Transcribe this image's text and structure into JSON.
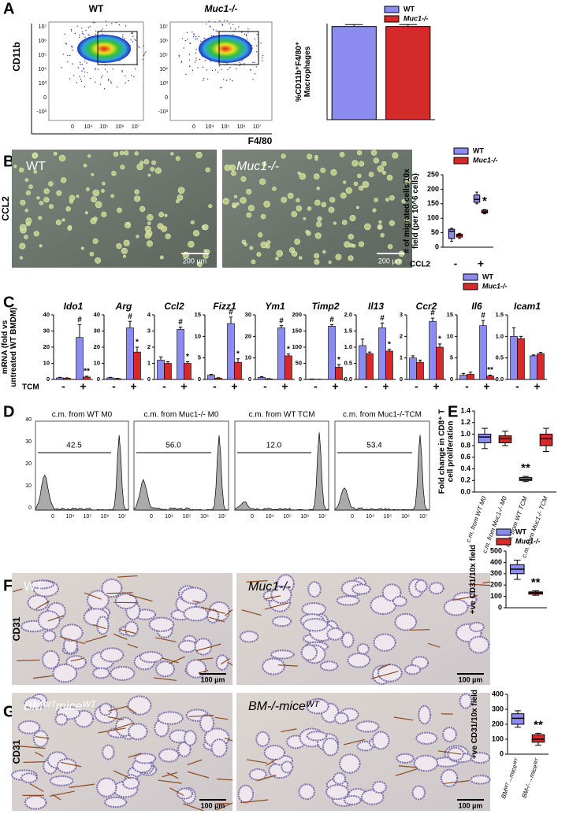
{
  "panel_labels": [
    "A",
    "B",
    "C",
    "D",
    "E",
    "F",
    "G"
  ],
  "images": {
    "a": {
      "labels": [
        "WT",
        "Muc1-/-"
      ],
      "y_label": "CD11b",
      "x_label": "F4/80",
      "y_ticks": [
        "10⁷",
        "10⁶",
        "10⁵",
        "10⁴",
        "10³",
        "0",
        "-10³"
      ],
      "x_ticks": [
        "0",
        "10⁴",
        "10⁵",
        "10⁶",
        "10⁷"
      ]
    },
    "b": {
      "labels": [
        "WT",
        "Muc1-/-"
      ],
      "scale_bars": [
        "200 µm",
        "200 µm"
      ],
      "row_label": "CCL2"
    },
    "d": {
      "titles": [
        "c.m. from WT M0",
        "c.m. from Muc1-/- M0",
        "c.m. from WT TCM",
        "c.m. from Muc1-/-TCM"
      ],
      "gates": [
        "42.5",
        "56.0",
        "12.0",
        "53.4"
      ],
      "y_ticks": [
        "0",
        "10",
        "20",
        "30",
        "40"
      ],
      "x_ticks": [
        "0",
        "10⁴",
        "10⁵",
        "10⁶",
        "10⁷"
      ]
    },
    "f": {
      "labels": [
        "WT",
        "Muc1-/-"
      ],
      "scale_bars": [
        "100 µm",
        "100 µm"
      ],
      "row_label": "CD31"
    },
    "g": {
      "labels": [
        "BMᵂᵀmiceᵂᵀ",
        "BM-/-miceᵂᵀ"
      ],
      "scale_bars": [
        "100 µm",
        "100 µm"
      ],
      "row_label": "CD31"
    }
  },
  "chart_data": [
    {
      "type": "bar",
      "ylabel": "%CD11b⁺F4/80⁺ Macrophages",
      "categories": [
        "WT",
        "Muc1-/-"
      ],
      "values": [
        97,
        97
      ],
      "errors": [
        2,
        2
      ],
      "colors": [
        "#8c8cf0",
        "#d42a2a"
      ],
      "ylim": [
        0,
        100
      ],
      "legend": "top-right"
    },
    {
      "type": "box",
      "ylabel": "# of migrated cells/10x field (per 10^6 cells)",
      "xlabel": "CCL2",
      "categories": [
        "-",
        "+"
      ],
      "ylim": [
        0,
        250
      ],
      "yticks": [
        0,
        50,
        100,
        150,
        200,
        250
      ],
      "legend": "top",
      "series": [
        {
          "name": "WT",
          "color": "#8c8cf0",
          "values": [
            [
              20,
              30,
              55,
              62,
              65
            ],
            [
              150,
              155,
              165,
              180,
              190
            ]
          ],
          "labels": [
            null,
            null
          ]
        },
        {
          "name": "Muc1-/-",
          "color": "#d42a2a",
          "values": [
            [
              30,
              35,
              40,
              45,
              48
            ],
            [
              115,
              118,
              122,
              128,
              130
            ]
          ],
          "labels": [
            null,
            "*"
          ]
        }
      ]
    },
    {
      "type": "bar-group",
      "title": "Ido1",
      "ylabel": "mRNA (fold vs untreated WT BMDM)",
      "xlabel": "TCM",
      "legend": "top-right",
      "categories": [
        "-",
        "+"
      ],
      "ylim": [
        0,
        40
      ],
      "yticks": [
        0,
        10,
        20,
        30,
        40
      ],
      "series": [
        {
          "name": "WT",
          "color": "#8c8cf0",
          "values": [
            1,
            26
          ],
          "errors": [
            0.3,
            8
          ],
          "labels": [
            null,
            "#"
          ]
        },
        {
          "name": "Muc1-/-",
          "color": "#d42a2a",
          "values": [
            0.8,
            1.5
          ],
          "errors": [
            0.2,
            0.5
          ],
          "labels": [
            null,
            "**"
          ]
        }
      ]
    },
    {
      "type": "bar-group",
      "title": "Arg",
      "categories": [
        "-",
        "+"
      ],
      "ylim": [
        0,
        40
      ],
      "yticks": [
        0,
        10,
        20,
        30,
        40
      ],
      "series": [
        {
          "name": "WT",
          "color": "#8c8cf0",
          "values": [
            1,
            32
          ],
          "errors": [
            0.3,
            4
          ],
          "labels": [
            null,
            "#"
          ]
        },
        {
          "name": "Muc1-/-",
          "color": "#d42a2a",
          "values": [
            0.5,
            17
          ],
          "errors": [
            0.2,
            3
          ],
          "labels": [
            null,
            "*"
          ]
        }
      ]
    },
    {
      "type": "bar-group",
      "title": "Ccl2",
      "categories": [
        "-",
        "+"
      ],
      "ylim": [
        0,
        4
      ],
      "yticks": [
        0,
        1,
        2,
        3,
        4
      ],
      "series": [
        {
          "name": "WT",
          "color": "#8c8cf0",
          "values": [
            1.2,
            3.1
          ],
          "errors": [
            0.2,
            0.15
          ],
          "labels": [
            null,
            "#"
          ]
        },
        {
          "name": "Muc1-/-",
          "color": "#d42a2a",
          "values": [
            1,
            1
          ],
          "errors": [
            0.1,
            0.1
          ],
          "labels": [
            null,
            "*"
          ]
        }
      ]
    },
    {
      "type": "bar-group",
      "title": "Fizz1",
      "categories": [
        "-",
        "+"
      ],
      "ylim": [
        0,
        15
      ],
      "yticks": [
        0,
        5,
        10,
        15
      ],
      "series": [
        {
          "name": "WT",
          "color": "#8c8cf0",
          "values": [
            1,
            13
          ],
          "errors": [
            0.2,
            1.5
          ],
          "labels": [
            null,
            "#"
          ]
        },
        {
          "name": "Muc1-/-",
          "color": "#d42a2a",
          "values": [
            0.3,
            4
          ],
          "errors": [
            0.1,
            0.8
          ],
          "labels": [
            null,
            "*"
          ]
        }
      ]
    },
    {
      "type": "bar-group",
      "title": "Ym1",
      "categories": [
        "-",
        "+"
      ],
      "ylim": [
        0,
        30
      ],
      "yticks": [
        0,
        10,
        20,
        30
      ],
      "series": [
        {
          "name": "WT",
          "color": "#8c8cf0",
          "values": [
            1,
            24
          ],
          "errors": [
            0.3,
            1
          ],
          "labels": [
            null,
            "#"
          ]
        },
        {
          "name": "Muc1-/-",
          "color": "#d42a2a",
          "values": [
            0.3,
            11
          ],
          "errors": [
            0.1,
            0.8
          ],
          "labels": [
            null,
            "*"
          ]
        }
      ]
    },
    {
      "type": "bar-group",
      "title": "Timp2",
      "categories": [
        "-",
        "+"
      ],
      "ylim": [
        0,
        200
      ],
      "yticks": [
        0,
        50,
        100,
        150,
        200
      ],
      "series": [
        {
          "name": "WT",
          "color": "#8c8cf0",
          "values": [
            1,
            165
          ],
          "errors": [
            0.5,
            5
          ],
          "labels": [
            null,
            "#"
          ]
        },
        {
          "name": "Muc1-/-",
          "color": "#d42a2a",
          "values": [
            0.5,
            38
          ],
          "errors": [
            0.2,
            8
          ],
          "labels": [
            null,
            "*"
          ]
        }
      ]
    },
    {
      "type": "bar-group",
      "title": "Il13",
      "categories": [
        "-",
        "+"
      ],
      "ylim": [
        0,
        2
      ],
      "yticks": [
        {
          "value": 0,
          "label": "0.0"
        },
        {
          "value": 0.5,
          "label": "0.5"
        },
        {
          "value": 1,
          "label": "1.0"
        },
        {
          "value": 1.5,
          "label": "1.5"
        },
        {
          "value": 2,
          "label": "2.0"
        }
      ],
      "series": [
        {
          "name": "WT",
          "color": "#8c8cf0",
          "values": [
            1.05,
            1.6
          ],
          "errors": [
            0.2,
            0.15
          ],
          "labels": [
            null,
            "#"
          ]
        },
        {
          "name": "Muc1-/-",
          "color": "#d42a2a",
          "values": [
            0.8,
            0.88
          ],
          "errors": [
            0.05,
            0.05
          ],
          "labels": [
            null,
            "*"
          ]
        }
      ]
    },
    {
      "type": "bar-group",
      "title": "Ccr2",
      "categories": [
        "-",
        "+"
      ],
      "ylim": [
        0,
        3
      ],
      "yticks": [
        0,
        1,
        2,
        3
      ],
      "series": [
        {
          "name": "WT",
          "color": "#8c8cf0",
          "values": [
            1,
            2.7
          ],
          "errors": [
            0.1,
            0.15
          ],
          "labels": [
            null,
            "#"
          ]
        },
        {
          "name": "Muc1-/-",
          "color": "#d42a2a",
          "values": [
            0.8,
            1.5
          ],
          "errors": [
            0.1,
            0.15
          ],
          "labels": [
            null,
            "*"
          ]
        }
      ]
    },
    {
      "type": "bar-group",
      "title": "Il6",
      "categories": [
        "-",
        "+"
      ],
      "ylim": [
        0,
        15
      ],
      "yticks": [
        0,
        5,
        10,
        15
      ],
      "series": [
        {
          "name": "WT",
          "color": "#8c8cf0",
          "values": [
            1,
            12.5
          ],
          "errors": [
            0.4,
            1.2
          ],
          "labels": [
            null,
            "#"
          ]
        },
        {
          "name": "Muc1-/-",
          "color": "#d42a2a",
          "values": [
            1.2,
            0.8
          ],
          "errors": [
            0.5,
            0.2
          ],
          "labels": [
            null,
            "**"
          ]
        }
      ]
    },
    {
      "type": "bar-group",
      "title": "Icam1",
      "categories": [
        "-",
        "+"
      ],
      "ylim": [
        0,
        1.5
      ],
      "yticks": [
        {
          "value": 0,
          "label": "0.0"
        },
        {
          "value": 0.5,
          "label": "0.5"
        },
        {
          "value": 1,
          "label": "1.0"
        },
        {
          "value": 1.5,
          "label": "1.5"
        }
      ],
      "series": [
        {
          "name": "WT",
          "color": "#8c8cf0",
          "values": [
            1,
            0.55
          ],
          "errors": [
            0.2,
            0.02
          ]
        },
        {
          "name": "Muc1-/-",
          "color": "#d42a2a",
          "values": [
            0.95,
            0.6
          ],
          "errors": [
            0.05,
            0.03
          ]
        }
      ]
    },
    {
      "type": "box",
      "ylabel": "Fold change in CD8⁺ T cell proliferation",
      "categories": [
        "c.m. from WT M0",
        "c.m. from Muc1-/- M0",
        "c.m. from WT TCM",
        "c.m. from Muc1-/- TCM"
      ],
      "values": [
        [
          0.75,
          0.85,
          0.95,
          1.0,
          1.1
        ],
        [
          0.8,
          0.85,
          0.92,
          0.97,
          1.05
        ],
        [
          0.18,
          0.2,
          0.22,
          0.25,
          0.27
        ],
        [
          0.7,
          0.8,
          0.92,
          1.0,
          1.1
        ]
      ],
      "colors": [
        "#8c8cf0",
        "#d42a2a",
        "#8c8cf0",
        "#d42a2a"
      ],
      "labels": [
        null,
        null,
        "**",
        null
      ],
      "ylim": [
        0,
        1.4
      ],
      "yticks": [
        {
          "value": 0,
          "label": "0.0"
        },
        {
          "value": 0.2,
          "label": "0.2"
        },
        {
          "value": 0.4,
          "label": "0.4"
        },
        {
          "value": 0.6,
          "label": "0.6"
        },
        {
          "value": 0.8,
          "label": "0.8"
        },
        {
          "value": 1,
          "label": "1.0"
        },
        {
          "value": 1.2,
          "label": "1.2"
        },
        {
          "value": 1.4,
          "label": "1.4"
        }
      ]
    },
    {
      "type": "box",
      "ylabel": "+ve CD31/10x field",
      "ylim": [
        0,
        500
      ],
      "yticks": [
        0,
        100,
        200,
        300,
        400,
        500
      ],
      "legend": "top",
      "series": [
        {
          "name": "WT",
          "color": "#8c8cf0",
          "values": [
            [
              250,
              300,
              340,
              380,
              420
            ]
          ],
          "labels": [
            null
          ]
        },
        {
          "name": "Muc1-/-",
          "color": "#d42a2a",
          "values": [
            [
              110,
              120,
              130,
              140,
              150
            ]
          ],
          "labels": [
            "**"
          ]
        }
      ]
    },
    {
      "type": "box",
      "ylabel": "+ve CD31/10x field",
      "categories": [
        "BMᵂᵀ→miceᵂᵀ",
        "BM-/-→miceᵂᵀ"
      ],
      "values": [
        [
          180,
          200,
          240,
          270,
          290
        ],
        [
          60,
          80,
          100,
          130,
          140
        ]
      ],
      "colors": [
        "#8c8cf0",
        "#d42a2a"
      ],
      "labels": [
        null,
        "**"
      ],
      "ylim": [
        0,
        400
      ],
      "yticks": [
        0,
        100,
        200,
        300,
        400
      ]
    }
  ]
}
